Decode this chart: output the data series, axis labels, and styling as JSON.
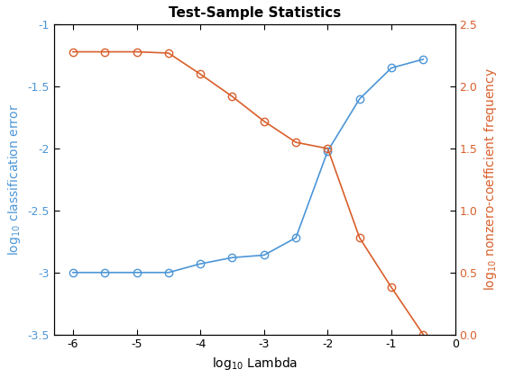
{
  "title": "Test-Sample Statistics",
  "xlabel": "log$_{10}$ Lambda",
  "ylabel_left": "log$_{10}$ classification error",
  "ylabel_right": "log$_{10}$ nonzero-coefficient frequency",
  "blue_x": [
    -6,
    -5.5,
    -5,
    -4.5,
    -4,
    -3.5,
    -3,
    -2.5,
    -2,
    -1.5,
    -1,
    -0.5
  ],
  "blue_y": [
    -3.0,
    -3.0,
    -3.0,
    -3.0,
    -2.93,
    -2.88,
    -2.86,
    -2.72,
    -2.02,
    -1.6,
    -1.35,
    -1.28
  ],
  "orange_x": [
    -6,
    -5.5,
    -5,
    -4.5,
    -4,
    -3.5,
    -3,
    -2.5,
    -2,
    -1.5,
    -1,
    -0.5
  ],
  "orange_y": [
    2.28,
    2.28,
    2.28,
    2.27,
    2.1,
    1.92,
    1.72,
    1.55,
    1.5,
    0.78,
    0.38,
    0.0
  ],
  "blue_color": "#4C96D7",
  "orange_color": "#D95F2B",
  "xlim": [
    -6.3,
    0.0
  ],
  "ylim_left": [
    -3.5,
    -1.0
  ],
  "ylim_right": [
    0,
    2.5
  ],
  "left_yticks": [
    -3.5,
    -3.0,
    -2.5,
    -2.0,
    -1.5,
    -1.0
  ],
  "right_yticks": [
    0,
    0.5,
    1.0,
    1.5,
    2.0,
    2.5
  ],
  "xticks": [
    -6,
    -5,
    -4,
    -3,
    -2,
    -1,
    0
  ],
  "marker": "o",
  "markersize": 6,
  "linewidth": 1.2,
  "markerfacecolor": "none",
  "markeredgewidth": 1.0,
  "background_color": "#ffffff",
  "title_fontsize": 11,
  "label_fontsize": 10,
  "tick_fontsize": 9
}
